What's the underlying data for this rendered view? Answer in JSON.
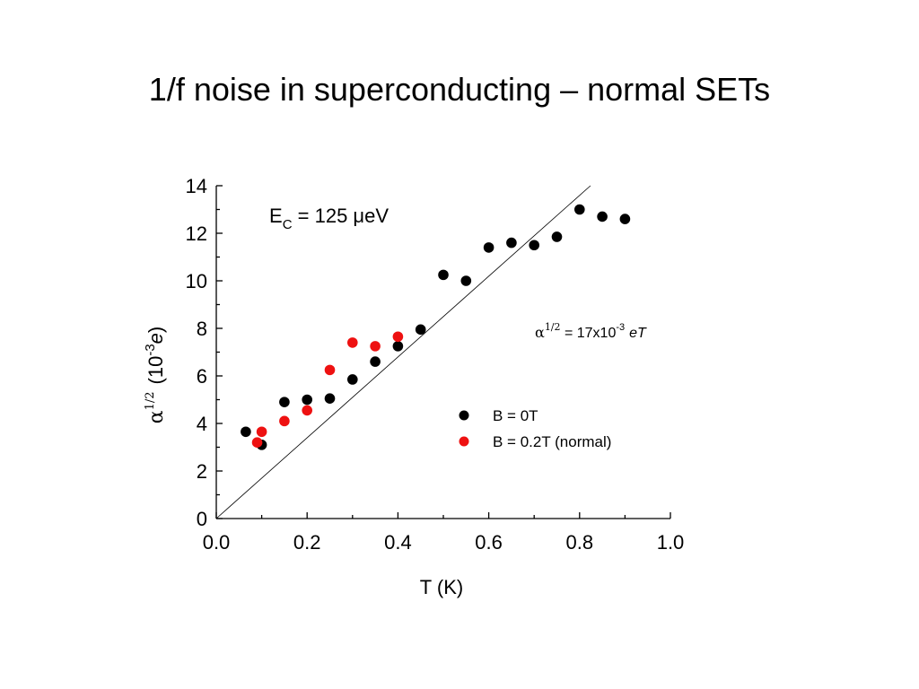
{
  "slide": {
    "title": "1/f noise in superconducting – normal SETs"
  },
  "chart_data": {
    "type": "scatter",
    "xlim": [
      0.0,
      1.0
    ],
    "ylim": [
      0,
      14
    ],
    "xticks": [
      "0.0",
      "0.2",
      "0.4",
      "0.6",
      "0.8",
      "1.0"
    ],
    "xtick_values": [
      0.0,
      0.2,
      0.4,
      0.6,
      0.8,
      1.0
    ],
    "yticks": [
      "0",
      "2",
      "4",
      "6",
      "8",
      "10",
      "12",
      "14"
    ],
    "ytick_values": [
      0,
      2,
      4,
      6,
      8,
      10,
      12,
      14
    ],
    "xlabel": "T (K)",
    "ylabel": {
      "symbol": "α",
      "sup": "1/2",
      "open": "(10",
      "exp": "-3",
      "unit": "e",
      "close": ")"
    },
    "grid": false,
    "legend_position": "middle-right",
    "series": [
      {
        "name": "B = 0T",
        "color": "#000000",
        "points": [
          [
            0.065,
            3.65
          ],
          [
            0.1,
            3.1
          ],
          [
            0.15,
            4.9
          ],
          [
            0.2,
            5.0
          ],
          [
            0.25,
            5.05
          ],
          [
            0.3,
            5.85
          ],
          [
            0.35,
            6.6
          ],
          [
            0.4,
            7.25
          ],
          [
            0.45,
            7.95
          ],
          [
            0.5,
            10.25
          ],
          [
            0.55,
            10.0
          ],
          [
            0.6,
            11.4
          ],
          [
            0.65,
            11.6
          ],
          [
            0.7,
            11.5
          ],
          [
            0.75,
            11.85
          ],
          [
            0.8,
            13.0
          ],
          [
            0.85,
            12.7
          ],
          [
            0.9,
            12.6
          ]
        ]
      },
      {
        "name": "B = 0.2T (normal)",
        "color": "#ee1111",
        "points": [
          [
            0.09,
            3.2
          ],
          [
            0.1,
            3.65
          ],
          [
            0.15,
            4.1
          ],
          [
            0.2,
            4.55
          ],
          [
            0.25,
            6.25
          ],
          [
            0.3,
            7.4
          ],
          [
            0.35,
            7.25
          ],
          [
            0.4,
            7.65
          ]
        ]
      }
    ],
    "fit_line": {
      "x": [
        0.0,
        0.824
      ],
      "y": [
        0.0,
        14.0
      ]
    },
    "annotations": {
      "energy": {
        "prefix": "E",
        "sub": "C",
        "suffix": " = 125 μeV"
      },
      "formula": {
        "symbol": "α",
        "sup": "1/2",
        "middle": " = 17x10",
        "exp": "-3",
        "tail": "eT"
      }
    }
  }
}
